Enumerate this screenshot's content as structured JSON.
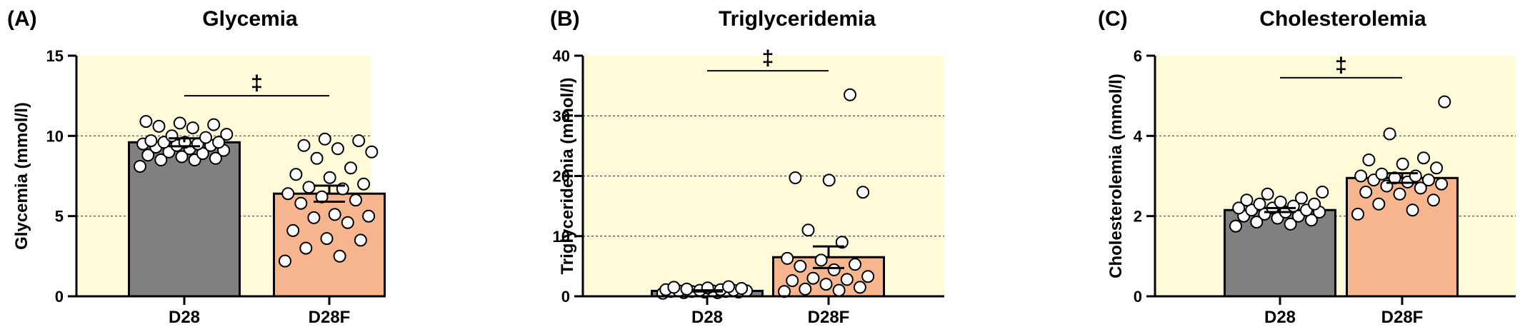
{
  "colors": {
    "plot_background": "#fffad8",
    "bar_D28": "#808080",
    "bar_D28F": "#f7b58d",
    "axis": "#000000",
    "grid": "#444444",
    "point_fill": "#ffffff",
    "point_stroke": "#000000"
  },
  "chart_data": [
    {
      "type": "bar",
      "panel_label": "(A)",
      "title": "Glycemia",
      "ylabel": "Glycemia (mmol/l)",
      "xlabel": "",
      "ylim": [
        0,
        15
      ],
      "yticks": [
        0,
        5,
        10,
        15
      ],
      "grid_y": [
        5,
        10
      ],
      "categories": [
        "D28",
        "D28F"
      ],
      "values": [
        9.6,
        6.4
      ],
      "sem": [
        0.25,
        0.5
      ],
      "points": [
        [
          8.1,
          8.5,
          8.5,
          8.6,
          8.7,
          8.8,
          8.9,
          9.0,
          9.1,
          9.2,
          9.3,
          9.4,
          9.4,
          9.5,
          9.5,
          9.6,
          9.6,
          9.6,
          9.7,
          9.9,
          10.0,
          10.1,
          10.5,
          10.6,
          10.7,
          10.8,
          10.9
        ],
        [
          2.2,
          2.5,
          3.0,
          3.5,
          3.6,
          4.1,
          4.6,
          4.9,
          5.0,
          5.1,
          5.8,
          6.0,
          6.2,
          6.4,
          6.7,
          6.8,
          7.0,
          7.4,
          7.6,
          8.0,
          8.6,
          9.0,
          9.2,
          9.4,
          9.7,
          9.8
        ]
      ],
      "significance": {
        "symbol": "‡",
        "between": [
          "D28",
          "D28F"
        ],
        "y": 12.5
      }
    },
    {
      "type": "bar",
      "panel_label": "(B)",
      "title": "Triglyceridemia",
      "ylabel": "Triglyceridemia (mmol/l)",
      "xlabel": "",
      "ylim": [
        0,
        40
      ],
      "yticks": [
        0,
        10,
        20,
        30,
        40
      ],
      "grid_y": [
        10,
        20,
        30
      ],
      "categories": [
        "D28",
        "D28F"
      ],
      "values": [
        0.9,
        6.5
      ],
      "sem": [
        0.1,
        1.8
      ],
      "points": [
        [
          0.5,
          0.6,
          0.6,
          0.7,
          0.7,
          0.8,
          0.8,
          0.8,
          0.9,
          0.9,
          0.9,
          1.0,
          1.0,
          1.1,
          1.1,
          1.2,
          1.3,
          1.4,
          1.5,
          1.6
        ],
        [
          0.8,
          1.0,
          1.2,
          1.5,
          2.0,
          2.6,
          2.8,
          3.0,
          3.3,
          4.4,
          5.0,
          5.3,
          6.0,
          6.3,
          9.0,
          11.0,
          17.3,
          19.3,
          19.7,
          33.5
        ]
      ],
      "significance": {
        "symbol": "‡",
        "between": [
          "D28",
          "D28F"
        ],
        "y": 37.5
      }
    },
    {
      "type": "bar",
      "panel_label": "(C)",
      "title": "Cholesterolemia",
      "ylabel": "Cholesterolemia (mmol/l)",
      "xlabel": "",
      "ylim": [
        0,
        6
      ],
      "yticks": [
        0,
        2,
        4,
        6
      ],
      "grid_y": [
        2,
        4
      ],
      "categories": [
        "D28",
        "D28F"
      ],
      "values": [
        2.15,
        2.95
      ],
      "sem": [
        0.05,
        0.12
      ],
      "points": [
        [
          1.75,
          1.8,
          1.85,
          1.9,
          1.95,
          2.0,
          2.0,
          2.05,
          2.1,
          2.1,
          2.15,
          2.15,
          2.2,
          2.2,
          2.25,
          2.3,
          2.3,
          2.35,
          2.4,
          2.45,
          2.55,
          2.6
        ],
        [
          2.05,
          2.15,
          2.3,
          2.4,
          2.55,
          2.6,
          2.7,
          2.75,
          2.8,
          2.85,
          2.9,
          2.9,
          2.95,
          3.0,
          3.0,
          3.05,
          3.2,
          3.3,
          3.4,
          3.45,
          4.05,
          4.85
        ]
      ],
      "significance": {
        "symbol": "‡",
        "between": [
          "D28",
          "D28F"
        ],
        "y": 5.45
      }
    }
  ]
}
